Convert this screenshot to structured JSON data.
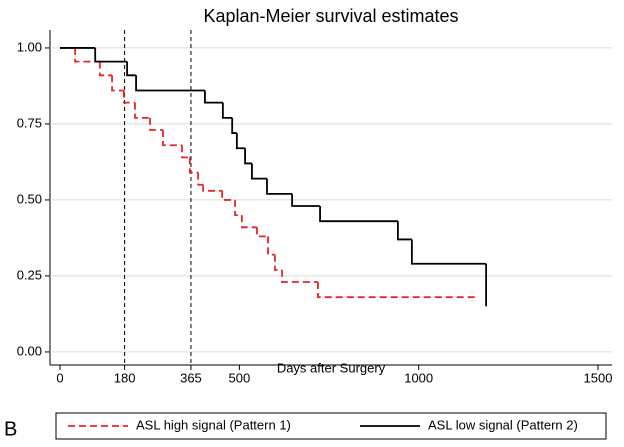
{
  "chart_data": {
    "type": "step",
    "title": "Kaplan-Meier survival estimates",
    "panel_label": "B",
    "x_label": "Days after Surgery",
    "xlim": [
      -28,
      1539
    ],
    "ylim": [
      -0.043,
      1.059
    ],
    "xticks": [
      0,
      180,
      365,
      500,
      1000,
      1500
    ],
    "yticks": [
      {
        "value": 0,
        "label": "0.00"
      },
      {
        "value": 0.25,
        "label": "0.25"
      },
      {
        "value": 0.5,
        "label": "0.50"
      },
      {
        "value": 0.75,
        "label": "0.75"
      },
      {
        "value": 1,
        "label": "1.00"
      }
    ],
    "grid": true,
    "vlines": [
      180,
      365
    ],
    "series": [
      {
        "name": "ASL high signal (Pattern 1)",
        "color": "#e8262a",
        "dash": true,
        "x": [
          0,
          42,
          111,
          145,
          178,
          209,
          251,
          287,
          340,
          362,
          385,
          399,
          452,
          488,
          507,
          549,
          580,
          599,
          619,
          719,
          1157
        ],
        "values": [
          1.0,
          0.955,
          0.91,
          0.86,
          0.82,
          0.77,
          0.73,
          0.68,
          0.64,
          0.59,
          0.55,
          0.53,
          0.5,
          0.45,
          0.41,
          0.38,
          0.32,
          0.27,
          0.23,
          0.18,
          0.18
        ]
      },
      {
        "name": "ASL low signal (Pattern 2)",
        "color": "#000000",
        "dash": false,
        "x": [
          0,
          98,
          187,
          212,
          404,
          454,
          480,
          493,
          516,
          535,
          577,
          647,
          725,
          942,
          981,
          1188
        ],
        "values": [
          1.0,
          0.955,
          0.91,
          0.86,
          0.82,
          0.77,
          0.72,
          0.67,
          0.62,
          0.57,
          0.52,
          0.48,
          0.43,
          0.37,
          0.29,
          0.15
        ]
      }
    ]
  }
}
